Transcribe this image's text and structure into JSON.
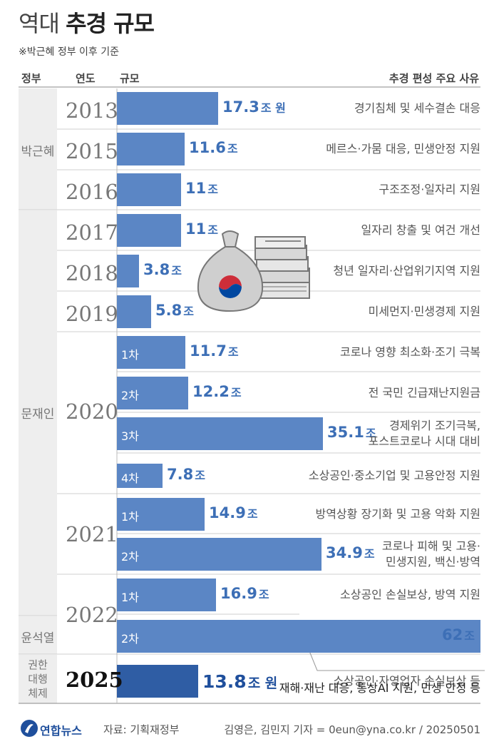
{
  "title_light": "역대",
  "title_bold": "추경 규모",
  "subtitle": "※박근혜 정부 이후 기준",
  "headers": {
    "gov": "정부",
    "year": "연도",
    "size": "규모",
    "reason": "추경 편성 주요 사유"
  },
  "governments": [
    "박근혜",
    "문재인",
    "윤석열",
    "권한 대행 체제"
  ],
  "years": [
    "2013",
    "2015",
    "2016",
    "2017",
    "2018",
    "2019",
    "2020",
    "2021",
    "2022",
    "2025"
  ],
  "unit": "조",
  "unit_won": "조 원",
  "chart_data": {
    "type": "bar",
    "orientation": "horizontal",
    "title": "역대 추경 규모",
    "subtitle": "※박근혜 정부 이후 기준",
    "unit": "조 원",
    "rows": [
      {
        "government": "박근혜",
        "year": "2013",
        "round": "",
        "value": 17.3,
        "value_label": "17.3",
        "unit_label": "조 원",
        "reason": [
          "경기침체 및 세수결손 대응"
        ]
      },
      {
        "government": "박근혜",
        "year": "2015",
        "round": "",
        "value": 11.6,
        "value_label": "11.6",
        "unit_label": "조",
        "reason": [
          "메르스·가뭄 대응, 민생안정 지원"
        ]
      },
      {
        "government": "박근혜",
        "year": "2016",
        "round": "",
        "value": 11,
        "value_label": "11",
        "unit_label": "조",
        "reason": [
          "구조조정·일자리 지원"
        ]
      },
      {
        "government": "문재인",
        "year": "2017",
        "round": "",
        "value": 11,
        "value_label": "11",
        "unit_label": "조",
        "reason": [
          "일자리 창출 및 여건 개선"
        ]
      },
      {
        "government": "문재인",
        "year": "2018",
        "round": "",
        "value": 3.8,
        "value_label": "3.8",
        "unit_label": "조",
        "reason": [
          "청년 일자리·산업위기지역 지원"
        ]
      },
      {
        "government": "문재인",
        "year": "2019",
        "round": "",
        "value": 5.8,
        "value_label": "5.8",
        "unit_label": "조",
        "reason": [
          "미세먼지·민생경제 지원"
        ]
      },
      {
        "government": "문재인",
        "year": "2020",
        "round": "1차",
        "value": 11.7,
        "value_label": "11.7",
        "unit_label": "조",
        "reason": [
          "코로나 영향 최소화·조기 극복"
        ]
      },
      {
        "government": "문재인",
        "year": "2020",
        "round": "2차",
        "value": 12.2,
        "value_label": "12.2",
        "unit_label": "조",
        "reason": [
          "전 국민 긴급재난지원금"
        ]
      },
      {
        "government": "문재인",
        "year": "2020",
        "round": "3차",
        "value": 35.1,
        "value_label": "35.1",
        "unit_label": "조",
        "reason": [
          "경제위기 조기극복,",
          "포스트코로나 시대 대비"
        ]
      },
      {
        "government": "문재인",
        "year": "2020",
        "round": "4차",
        "value": 7.8,
        "value_label": "7.8",
        "unit_label": "조",
        "reason": [
          "소상공인·중소기업 및 고용안정 지원"
        ]
      },
      {
        "government": "문재인",
        "year": "2021",
        "round": "1차",
        "value": 14.9,
        "value_label": "14.9",
        "unit_label": "조",
        "reason": [
          "방역상황 장기화 및 고용 악화 지원"
        ]
      },
      {
        "government": "문재인",
        "year": "2021",
        "round": "2차",
        "value": 34.9,
        "value_label": "34.9",
        "unit_label": "조",
        "reason": [
          "코로나 피해 및 고용·",
          "민생지원, 백신·방역"
        ]
      },
      {
        "government": "문재인",
        "year": "2022",
        "round": "1차",
        "value": 16.9,
        "value_label": "16.9",
        "unit_label": "조",
        "reason": [
          "소상공인 손실보상, 방역 지원"
        ]
      },
      {
        "government": "윤석열",
        "year": "2022",
        "round": "2차",
        "value": 62,
        "value_label": "62",
        "unit_label": "조",
        "reason": [
          "소상공인·자영업자 손실보상 등"
        ]
      },
      {
        "government": "권한 대행 체제",
        "year": "2025",
        "round": "",
        "value": 13.8,
        "value_label": "13.8",
        "unit_label": "조 원",
        "reason": [
          "재해·재난 대응, 통상AI 지원, 민생 안정 등"
        ]
      }
    ]
  },
  "colors": {
    "bar": "#5b86c5",
    "value_text": "#3d6fb6",
    "latest_bar": "#2f5da4",
    "latest_value": "#1f4f9c",
    "gov_shade": "#eeeeee",
    "line": "#cfcfcf"
  },
  "icon": "money-bag-and-cash-icon",
  "footer": {
    "logo": "연합뉴스",
    "source": "자료: 기획재정부",
    "credit": "김영은, 김민지 기자 = 0eun@yna.co.kr / 20250501"
  }
}
